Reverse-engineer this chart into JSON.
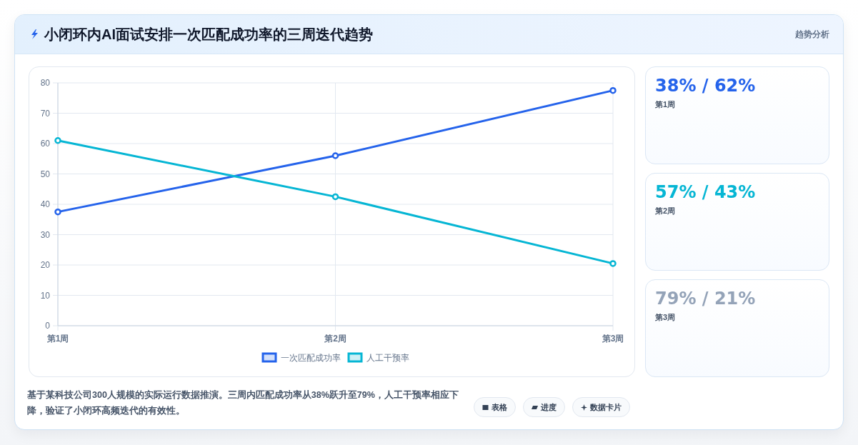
{
  "chart_data": [
    {
      "type": "line",
      "title": "小闭环内AI面试安排一次匹配成功率的三周迭代趋势",
      "categories": [
        "第1周",
        "第2周",
        "第3周"
      ],
      "series": [
        {
          "name": "一次匹配成功率",
          "color": "#2563eb",
          "values": [
            37.5,
            56,
            77.5
          ]
        },
        {
          "name": "人工干预率",
          "color": "#06b6d4",
          "values": [
            61,
            42.5,
            20.5
          ]
        }
      ],
      "ylim": [
        0,
        80
      ],
      "yticks": [
        0,
        10,
        20,
        30,
        40,
        50,
        60,
        70,
        80
      ],
      "grid": true,
      "legend": "bottom",
      "marker": "circle",
      "line_style": "solid",
      "annotations": [
        "趋势分析",
        "基于某科技公司300人规模的实际运行数据推演。三周内匹配成功率从38%跃升至79%，人工干预率相应下降，验证了小闭环高频迭代的有效性。",
        "表格",
        "进度",
        "数据卡片"
      ]
    },
    {
      "type": "other",
      "categories": [
        "第1周",
        "第2周",
        "第3周"
      ],
      "annotations": [
        "38% / 62%",
        "57% / 43%",
        "79% / 21%"
      ]
    }
  ]
}
